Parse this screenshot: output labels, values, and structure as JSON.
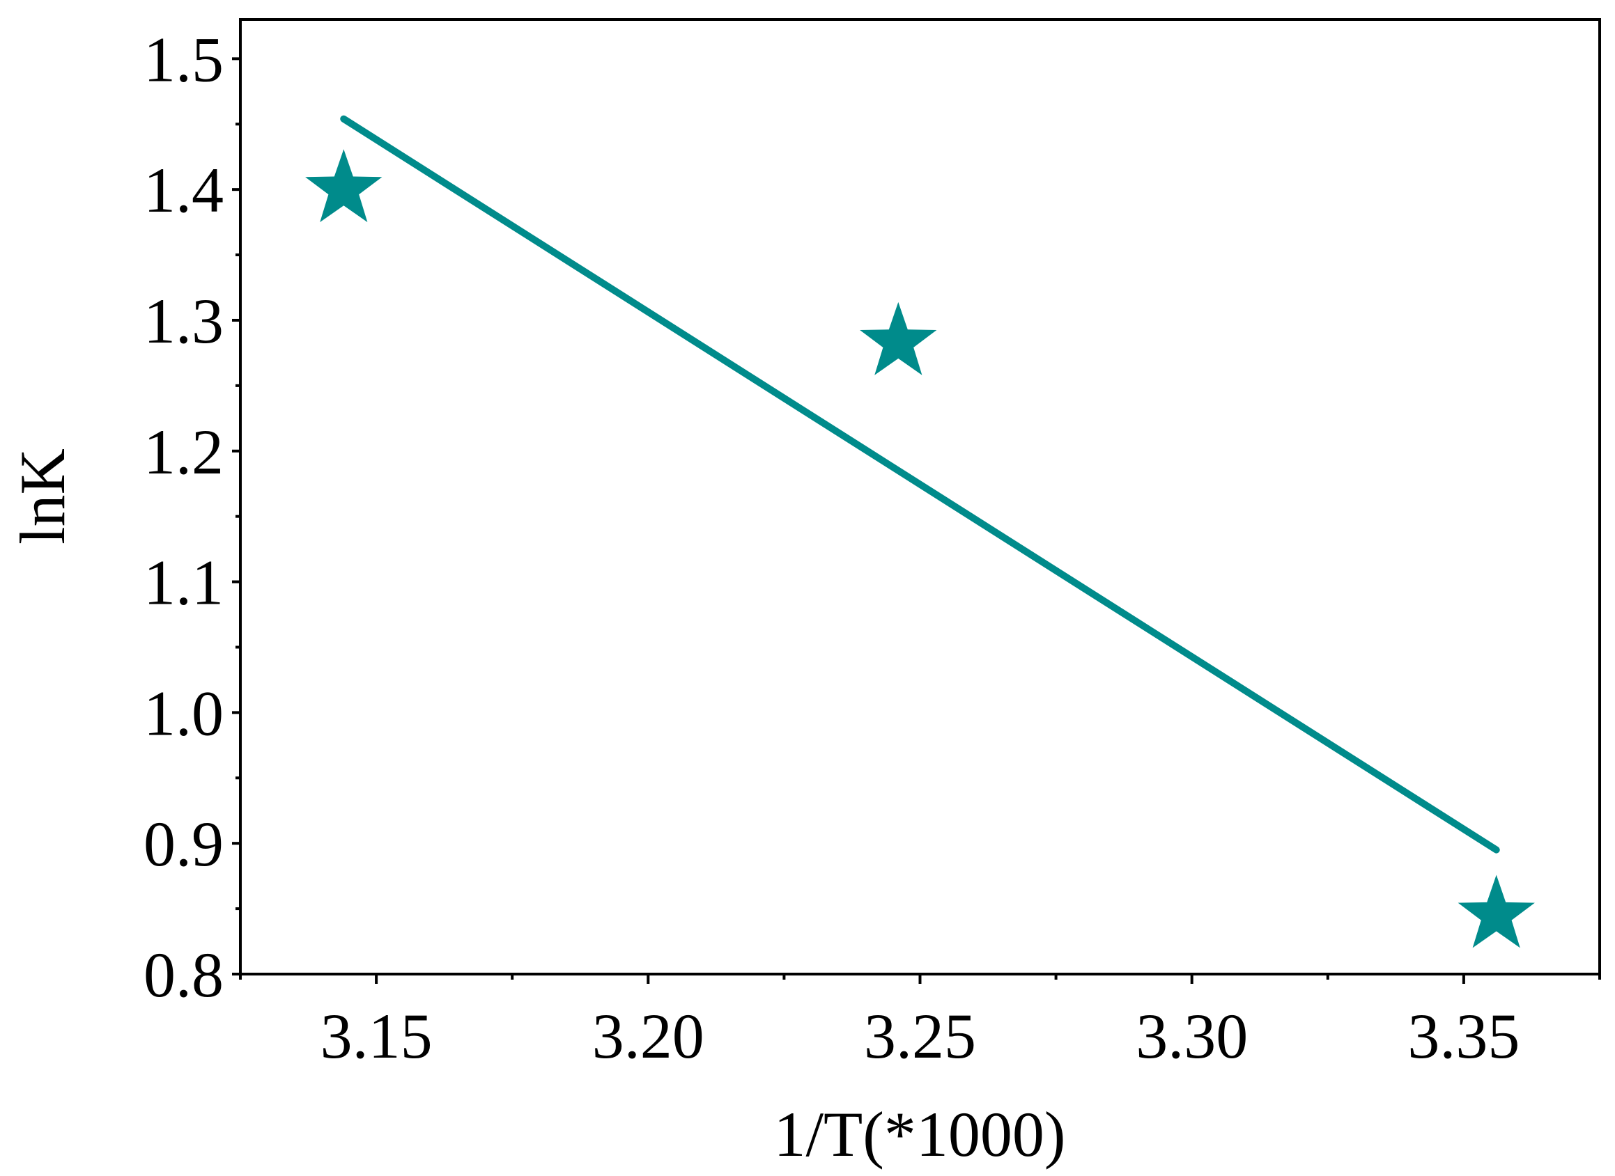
{
  "chart_data": {
    "type": "scatter",
    "title": "",
    "xlabel": "1/T(*1000)",
    "ylabel": "lnK",
    "xlim": [
      3.125,
      3.375
    ],
    "ylim": [
      0.8,
      1.53
    ],
    "xticks": [
      3.15,
      3.2,
      3.25,
      3.3,
      3.35
    ],
    "xtick_labels": [
      "3.15",
      "3.20",
      "3.25",
      "3.30",
      "3.35"
    ],
    "yticks": [
      0.8,
      0.9,
      1.0,
      1.1,
      1.2,
      1.3,
      1.4,
      1.5
    ],
    "ytick_labels": [
      "0.8",
      "0.9",
      "1.0",
      "1.1",
      "1.2",
      "1.3",
      "1.4",
      "1.5"
    ],
    "grid": false,
    "color": "#008b8b",
    "points": [
      {
        "x": 3.144,
        "y": 1.4
      },
      {
        "x": 3.246,
        "y": 1.283
      },
      {
        "x": 3.356,
        "y": 0.845
      }
    ],
    "fit_line": {
      "x": [
        3.144,
        3.356
      ],
      "y": [
        1.454,
        0.895
      ]
    }
  }
}
